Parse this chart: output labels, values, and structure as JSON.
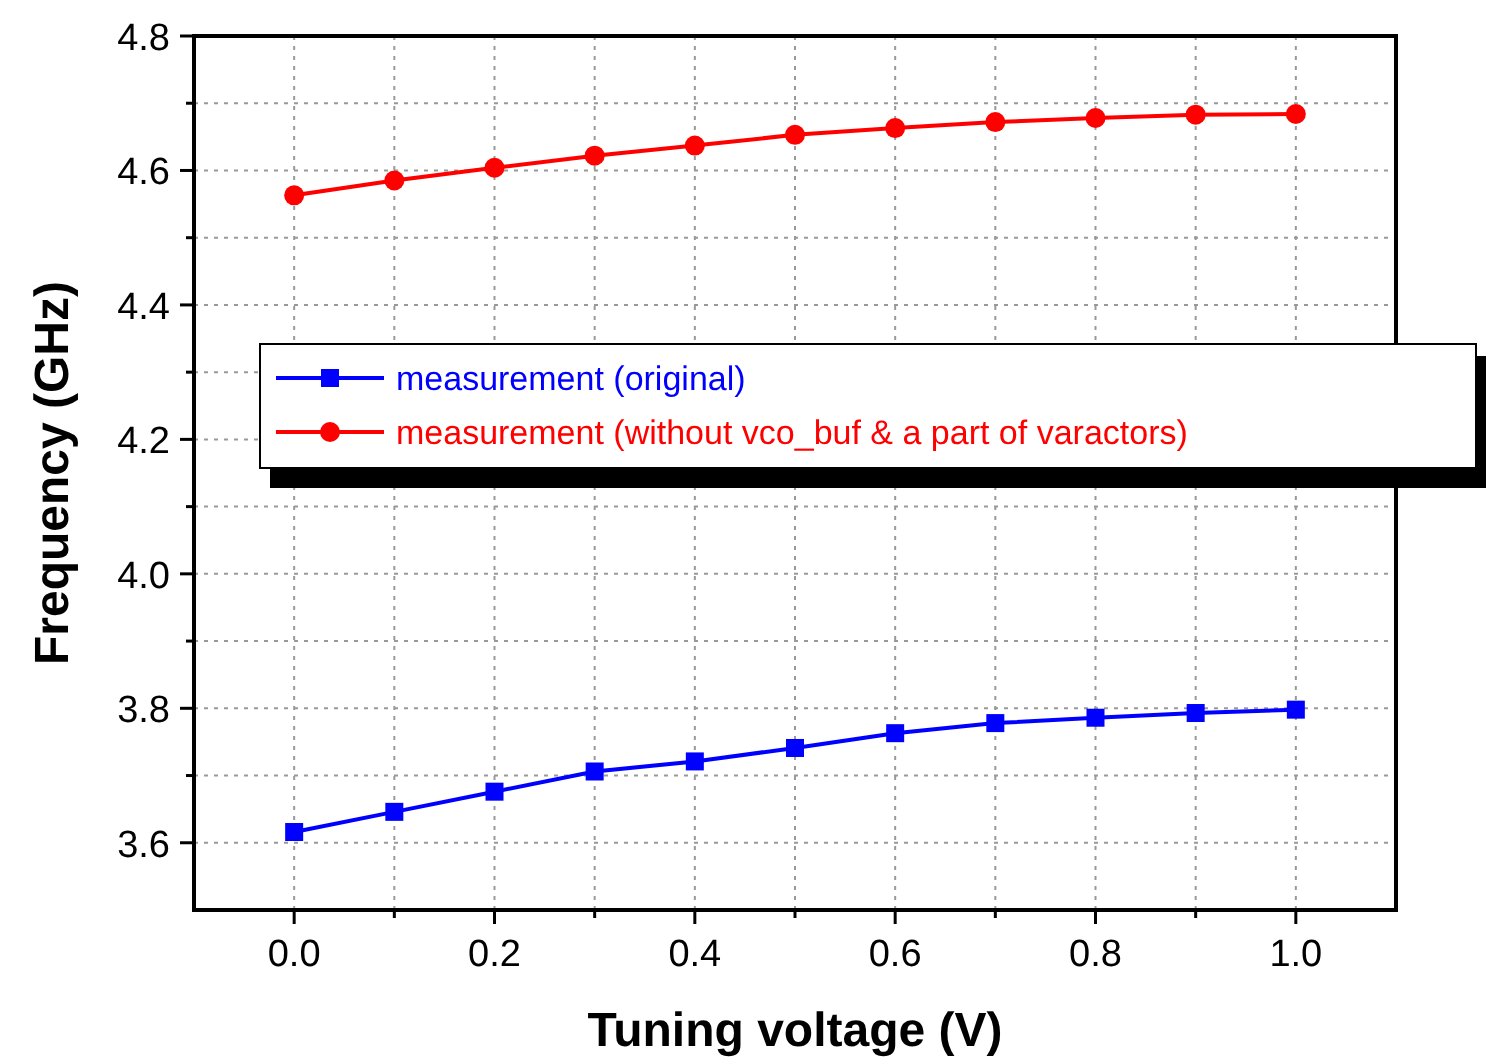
{
  "chart_data": {
    "type": "line",
    "xlabel": "Tuning voltage (V)",
    "ylabel": "Frequency (GHz)",
    "x": [
      0,
      0.1,
      0.2,
      0.3,
      0.4,
      0.5,
      0.6,
      0.7,
      0.8,
      0.9,
      1.0
    ],
    "series": [
      {
        "name": "measurement (original)",
        "color": "#0000ff",
        "marker": "square",
        "values": [
          3.616,
          3.646,
          3.676,
          3.706,
          3.721,
          3.741,
          3.763,
          3.778,
          3.786,
          3.793,
          3.798
        ]
      },
      {
        "name": "measurement (without vco_buf & a part of varactors)",
        "color": "#ff0000",
        "marker": "circle",
        "values": [
          4.563,
          4.585,
          4.604,
          4.622,
          4.637,
          4.653,
          4.663,
          4.672,
          4.678,
          4.683,
          4.684
        ]
      }
    ],
    "xlim": [
      -0.1,
      1.1
    ],
    "ylim": [
      3.5,
      4.8
    ],
    "xticks": [
      {
        "value": 0,
        "label": "0.0"
      },
      {
        "value": 0.1,
        "label": null
      },
      0.2,
      {
        "value": 0.3,
        "label": null
      },
      0.4,
      {
        "value": 0.5,
        "label": null
      },
      0.6,
      {
        "value": 0.7,
        "label": null
      },
      0.8,
      {
        "value": 0.9,
        "label": null
      },
      {
        "value": 1,
        "label": "1.0"
      }
    ],
    "yticks": [
      3.6,
      {
        "value": 3.7,
        "label": null
      },
      3.8,
      {
        "value": 3.9,
        "label": null
      },
      {
        "value": 4,
        "label": "4.0"
      },
      {
        "value": 4.1,
        "label": null
      },
      4.2,
      {
        "value": 4.3,
        "label": null
      },
      4.4,
      {
        "value": 4.5,
        "label": null
      },
      4.6,
      {
        "value": 4.7,
        "label": null
      },
      4.8
    ],
    "grid": true,
    "legend": "left",
    "line_style": "solid"
  }
}
